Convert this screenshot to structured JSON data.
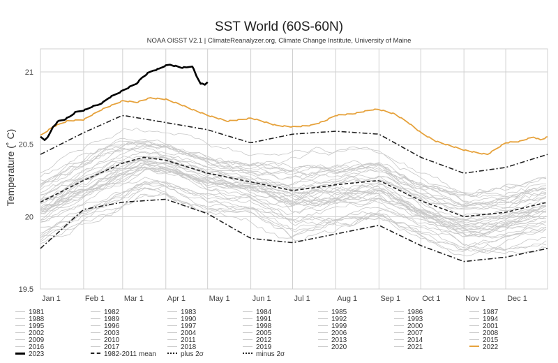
{
  "title": "SST World (60S-60N)",
  "subtitle": "NOAA OISST V2.1 | ClimateReanalyzer.org, Climate Change Institute, University of Maine",
  "chart_data": {
    "type": "line",
    "title": "SST World (60S-60N)",
    "subtitle": "NOAA OISST V2.1 | ClimateReanalyzer.org, Climate Change Institute, University of Maine",
    "xlabel": "",
    "ylabel": "Temperature (˚ C)",
    "ylim": [
      19.5,
      21.15
    ],
    "yticks": [
      19.5,
      20,
      20.5,
      21
    ],
    "ytick_labels": [
      "19.5",
      "20",
      "20.5",
      "21"
    ],
    "xlim_day": [
      1,
      365
    ],
    "xticks": [
      {
        "label": "Jan 1",
        "day": 1
      },
      {
        "label": "Feb 1",
        "day": 32
      },
      {
        "label": "Mar 1",
        "day": 60
      },
      {
        "label": "Apr 1",
        "day": 91
      },
      {
        "label": "May 1",
        "day": 121
      },
      {
        "label": "Jun 1",
        "day": 152
      },
      {
        "label": "Jul 1",
        "day": 182
      },
      {
        "label": "Aug 1",
        "day": 213
      },
      {
        "label": "Sep 1",
        "day": 244
      },
      {
        "label": "Oct 1",
        "day": 274
      },
      {
        "label": "Nov 1",
        "day": 305
      },
      {
        "label": "Dec 1",
        "day": 335
      }
    ],
    "grid": true,
    "legend_position": "bottom",
    "highlight_series": [
      {
        "name": "2023",
        "color": "#000000",
        "style": "solid-thick",
        "x": [
          1,
          4,
          7,
          10,
          14,
          18,
          22,
          26,
          30,
          34,
          38,
          42,
          46,
          50,
          54,
          58,
          62,
          66,
          70,
          74,
          78,
          82,
          86,
          90,
          94,
          98,
          102,
          106,
          110,
          113,
          116,
          119,
          121
        ],
        "y": [
          20.55,
          20.53,
          20.56,
          20.62,
          20.66,
          20.67,
          20.69,
          20.72,
          20.73,
          20.74,
          20.76,
          20.77,
          20.79,
          20.82,
          20.84,
          20.86,
          20.88,
          20.9,
          20.92,
          20.96,
          20.99,
          21.01,
          21.02,
          21.04,
          21.05,
          21.04,
          21.03,
          21.03,
          21.04,
          20.97,
          20.92,
          20.91,
          20.93
        ]
      },
      {
        "name": "2022",
        "color": "#e6a23c",
        "style": "solid",
        "x": [
          1,
          10,
          20,
          32,
          45,
          55,
          60,
          70,
          80,
          91,
          100,
          110,
          121,
          135,
          145,
          152,
          160,
          170,
          182,
          195,
          205,
          213,
          225,
          240,
          244,
          255,
          265,
          274,
          285,
          295,
          305,
          315,
          322,
          330,
          335,
          345,
          355,
          360,
          365
        ],
        "y": [
          20.56,
          20.62,
          20.66,
          20.67,
          20.74,
          20.78,
          20.8,
          20.79,
          20.82,
          20.81,
          20.78,
          20.74,
          20.7,
          20.66,
          20.67,
          20.68,
          20.66,
          20.63,
          20.62,
          20.63,
          20.66,
          20.7,
          20.71,
          20.74,
          20.74,
          20.71,
          20.65,
          20.58,
          20.52,
          20.49,
          20.46,
          20.44,
          20.43,
          20.48,
          20.51,
          20.52,
          20.55,
          20.53,
          20.55
        ]
      }
    ],
    "reference_series": [
      {
        "name": "1982-2011 mean",
        "color": "#222222",
        "style": "dashed",
        "x": [
          1,
          32,
          60,
          75,
          91,
          121,
          152,
          182,
          213,
          244,
          274,
          305,
          335,
          365
        ],
        "y": [
          20.1,
          20.25,
          20.37,
          20.41,
          20.39,
          20.3,
          20.24,
          20.18,
          20.22,
          20.25,
          20.11,
          20.0,
          20.03,
          20.1
        ]
      },
      {
        "name": "plus 2σ",
        "color": "#222222",
        "style": "dash-dot",
        "x": [
          1,
          32,
          60,
          91,
          121,
          152,
          182,
          213,
          244,
          274,
          305,
          335,
          365
        ],
        "y": [
          20.43,
          20.58,
          20.7,
          20.65,
          20.6,
          20.51,
          20.57,
          20.59,
          20.57,
          20.41,
          20.3,
          20.34,
          20.43
        ]
      },
      {
        "name": "minus 2σ",
        "color": "#222222",
        "style": "dash-dot",
        "x": [
          1,
          32,
          60,
          91,
          121,
          152,
          182,
          213,
          244,
          274,
          305,
          335,
          365
        ],
        "y": [
          19.78,
          20.05,
          20.1,
          20.12,
          20.02,
          19.85,
          19.82,
          19.88,
          19.94,
          19.8,
          19.69,
          19.72,
          19.78
        ]
      }
    ],
    "background_years": {
      "range": [
        1981,
        2021
      ],
      "color": "#c8c8c8",
      "note": "individual year traces, gray thin lines; spread roughly between minus 2σ and plus 2σ"
    },
    "legend": [
      {
        "label": "1981",
        "style": "gray"
      },
      {
        "label": "1982",
        "style": "gray"
      },
      {
        "label": "1983",
        "style": "gray"
      },
      {
        "label": "1984",
        "style": "gray"
      },
      {
        "label": "1985",
        "style": "gray"
      },
      {
        "label": "1986",
        "style": "gray"
      },
      {
        "label": "1987",
        "style": "gray"
      },
      {
        "label": "1988",
        "style": "gray"
      },
      {
        "label": "1989",
        "style": "gray"
      },
      {
        "label": "1990",
        "style": "gray"
      },
      {
        "label": "1991",
        "style": "gray"
      },
      {
        "label": "1992",
        "style": "gray"
      },
      {
        "label": "1993",
        "style": "gray"
      },
      {
        "label": "1994",
        "style": "gray"
      },
      {
        "label": "1995",
        "style": "gray"
      },
      {
        "label": "1996",
        "style": "gray"
      },
      {
        "label": "1997",
        "style": "gray"
      },
      {
        "label": "1998",
        "style": "gray"
      },
      {
        "label": "1999",
        "style": "gray"
      },
      {
        "label": "2000",
        "style": "gray"
      },
      {
        "label": "2001",
        "style": "gray"
      },
      {
        "label": "2002",
        "style": "gray"
      },
      {
        "label": "2003",
        "style": "gray"
      },
      {
        "label": "2004",
        "style": "gray"
      },
      {
        "label": "2005",
        "style": "gray"
      },
      {
        "label": "2006",
        "style": "gray"
      },
      {
        "label": "2007",
        "style": "gray"
      },
      {
        "label": "2008",
        "style": "gray"
      },
      {
        "label": "2009",
        "style": "gray"
      },
      {
        "label": "2010",
        "style": "gray"
      },
      {
        "label": "2011",
        "style": "gray"
      },
      {
        "label": "2012",
        "style": "gray"
      },
      {
        "label": "2013",
        "style": "gray"
      },
      {
        "label": "2014",
        "style": "gray"
      },
      {
        "label": "2015",
        "style": "gray"
      },
      {
        "label": "2016",
        "style": "gray"
      },
      {
        "label": "2017",
        "style": "gray"
      },
      {
        "label": "2018",
        "style": "gray"
      },
      {
        "label": "2019",
        "style": "gray"
      },
      {
        "label": "2020",
        "style": "gray"
      },
      {
        "label": "2021",
        "style": "gray"
      },
      {
        "label": "2022",
        "style": "orange"
      },
      {
        "label": "2023",
        "style": "black"
      },
      {
        "label": "1982-2011 mean",
        "style": "dashed"
      },
      {
        "label": "plus 2σ",
        "style": "dashdot"
      },
      {
        "label": "minus 2σ",
        "style": "dashdot"
      }
    ]
  }
}
